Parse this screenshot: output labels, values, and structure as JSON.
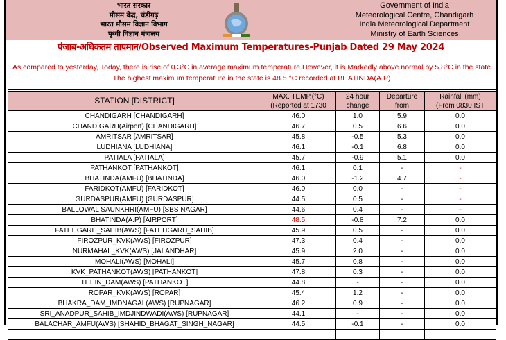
{
  "header": {
    "hindi_lines": [
      "भारत सरकार",
      "मौसम केंद्र, चंडीगढ़",
      "भारत मौसम विज्ञान विभाग",
      "पृथ्वी विज्ञान मंत्रालय"
    ],
    "english_lines": [
      "Government of India",
      "Meteorological Centre, Chandigarh",
      "India Meteorological Department",
      "Ministry of Earth Sciences"
    ],
    "logo": "imd-emblem-logo"
  },
  "title": "पंजाब-अधिकतम तापमान/Observed Maximum Temperatures-Punjab Dated 29 May 2024",
  "note": "As compared to yesterday, Today, there is rise of 0.3°C in average maximum temperature.However, it is Markedly above normal by 5.8°C in the state. The highest maximum temperature in the state is 48.5 °C recorded at BHATINDA(A.P).",
  "colors": {
    "header_bg": "#e6b8b7",
    "accent_red": "#c00000"
  },
  "table": {
    "headers": [
      [
        "STATION [DISTRICT]"
      ],
      [
        "MAX. TEMP.(°C)",
        "(Reported at 1730"
      ],
      [
        "24 hour",
        "change"
      ],
      [
        "Departure",
        "from"
      ],
      [
        "Rainfall (mm)",
        "(From 0830 IST"
      ]
    ],
    "rows": [
      [
        "CHANDIGARH  [CHANDIGARH]",
        "46.0",
        "1.0",
        "5.9",
        "0.0"
      ],
      [
        "CHANDIGARH(Airport)  [CHANDIGARH]",
        "46.7",
        "0.5",
        "6.6",
        "0.0"
      ],
      [
        "AMRITSAR  [AMRITSAR]",
        "45.8",
        "-0.5",
        "5.3",
        "0.0"
      ],
      [
        "LUDHIANA  [LUDHIANA]",
        "46.1",
        "-0.1",
        "6.8",
        "0.0"
      ],
      [
        "PATIALA  [PATIALA]",
        "45.7",
        "-0.9",
        "5.1",
        "0.0"
      ],
      [
        "PATHANKOT  [PATHANKOT]",
        "46.1",
        "0.1",
        "-",
        "-"
      ],
      [
        "BHATINDA(AMFU)  [BHATINDA]",
        "46.0",
        "-1.2",
        "4.7",
        "-"
      ],
      [
        "FARIDKOT(AMFU)  [FARIDKOT]",
        "46.0",
        "0.0",
        "-",
        "-"
      ],
      [
        "GURDASPUR(AMFU)  [GURDASPUR]",
        "44.5",
        "0.5",
        "-",
        "-"
      ],
      [
        "BALLOWAL SAUNKHRI(AMFU)  [SBS NAGAR]",
        "44.6",
        "0.4",
        "-",
        "-"
      ],
      [
        "BHATINDA(A.P)  [AIRPORT]",
        "48.5",
        "-0.8",
        "7.2",
        "0.0"
      ],
      [
        "FATEHGARH_SAHIB(AWS)  [FATEHGARH_SAHIB]",
        "45.9",
        "0.5",
        "-",
        "0.0"
      ],
      [
        "FIROZPUR_KVK(AWS)  [FIROZPUR]",
        "47.3",
        "0.4",
        "-",
        "0.0"
      ],
      [
        "NURMAHAL_KVK(AWS)  [JALANDHAR]",
        "45.9",
        "2.0",
        "-",
        "0.0"
      ],
      [
        "MOHALI(AWS)  [MOHALI]",
        "45.7",
        "0.8",
        "-",
        "0.0"
      ],
      [
        "KVK_PATHANKOT(AWS)  [PATHANKOT]",
        "47.8",
        "0.3",
        "-",
        "0.0"
      ],
      [
        "THEIN_DAM(AWS)  [PATHANKOT]",
        "44.8",
        "-",
        "-",
        "0.0"
      ],
      [
        "ROPAR_KVK(AWS)  [ROPAR]",
        "45.4",
        "1.2",
        "-",
        "0.0"
      ],
      [
        "BHAKRA_DAM_IMDNAGAL(AWS)  [RUPNAGAR]",
        "46.2",
        "0.9",
        "-",
        "0.0"
      ],
      [
        "SRI_ANADPUR_SAHIB_IMDJINDWADI(AWS)  [RUPNAGAR]",
        "44.1",
        "-",
        "-",
        "0.0"
      ],
      [
        "BALACHAR_AMFU(AWS)  [SHAHID_BHAGAT_SINGH_NAGAR]",
        "44.5",
        "-0.1",
        "-",
        "0.0"
      ]
    ]
  }
}
